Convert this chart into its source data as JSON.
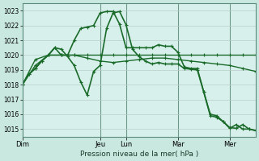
{
  "background_color": "#c8e8e0",
  "plot_bg_color": "#d8f0ec",
  "grid_color": "#b8cec8",
  "vline_color": "#5a8a78",
  "line_color": "#1a6b2a",
  "title": "Pression niveau de la mer( hPa )",
  "ylim": [
    1014.5,
    1023.5
  ],
  "yticks": [
    1015,
    1016,
    1017,
    1018,
    1019,
    1020,
    1021,
    1022,
    1023
  ],
  "day_labels": [
    "Dim",
    "Jeu",
    "Lun",
    "Mar",
    "Mer"
  ],
  "xlim": [
    0,
    108
  ],
  "day_x": [
    0,
    36,
    48,
    72,
    96
  ],
  "series": [
    {
      "x": [
        0,
        6,
        12,
        18,
        24,
        30,
        36,
        42,
        48,
        54,
        60,
        66,
        72,
        78,
        84,
        90,
        96,
        102,
        108
      ],
      "y": [
        1018.0,
        1019.7,
        1020.0,
        1020.0,
        1020.0,
        1020.0,
        1020.0,
        1020.0,
        1020.0,
        1020.0,
        1020.0,
        1020.0,
        1020.0,
        1020.0,
        1020.0,
        1020.0,
        1020.0,
        1020.0,
        1020.0
      ],
      "lw": 1.0,
      "marker": true
    },
    {
      "x": [
        0,
        6,
        12,
        18,
        24,
        30,
        36,
        42,
        48,
        54,
        60,
        66,
        72,
        78,
        84,
        90,
        96,
        102,
        108
      ],
      "y": [
        1018.0,
        1019.3,
        1020.0,
        1020.0,
        1020.0,
        1019.8,
        1019.6,
        1019.5,
        1019.6,
        1019.7,
        1019.8,
        1019.8,
        1019.7,
        1019.6,
        1019.5,
        1019.4,
        1019.3,
        1019.1,
        1018.9
      ],
      "lw": 1.0,
      "marker": true
    },
    {
      "x": [
        0,
        3,
        6,
        9,
        12,
        15,
        18,
        21,
        24,
        27,
        30,
        33,
        36,
        39,
        42,
        45,
        48,
        51,
        54,
        57,
        60,
        63,
        66,
        69,
        72,
        75,
        78,
        81,
        84,
        87,
        90,
        93,
        96,
        99,
        102,
        105,
        108
      ],
      "y": [
        1018.0,
        1018.7,
        1019.1,
        1019.6,
        1020.0,
        1020.5,
        1020.0,
        1020.0,
        1021.0,
        1021.8,
        1021.9,
        1022.0,
        1022.85,
        1022.95,
        1022.95,
        1022.1,
        1020.5,
        1020.5,
        1020.5,
        1020.5,
        1020.5,
        1020.7,
        1020.6,
        1020.6,
        1020.2,
        1019.2,
        1019.1,
        1019.1,
        1017.5,
        1016.0,
        1015.9,
        1015.5,
        1015.1,
        1015.05,
        1015.3,
        1015.0,
        1014.9
      ],
      "lw": 1.2,
      "marker": true
    },
    {
      "x": [
        0,
        3,
        6,
        9,
        12,
        15,
        18,
        21,
        24,
        27,
        30,
        33,
        36,
        39,
        42,
        45,
        48,
        51,
        54,
        57,
        60,
        63,
        66,
        69,
        72,
        75,
        78,
        81,
        84,
        87,
        90,
        93,
        96,
        99,
        102,
        105,
        108
      ],
      "y": [
        1018.0,
        1018.7,
        1019.1,
        1019.6,
        1020.0,
        1020.5,
        1020.4,
        1019.9,
        1019.3,
        1018.2,
        1017.3,
        1018.9,
        1019.3,
        1021.8,
        1022.85,
        1022.95,
        1022.05,
        1020.4,
        1019.9,
        1019.6,
        1019.4,
        1019.5,
        1019.4,
        1019.4,
        1019.4,
        1019.1,
        1019.05,
        1019.0,
        1017.5,
        1015.9,
        1015.8,
        1015.5,
        1015.05,
        1015.3,
        1015.0,
        1015.0,
        1014.9
      ],
      "lw": 1.2,
      "marker": true
    }
  ]
}
